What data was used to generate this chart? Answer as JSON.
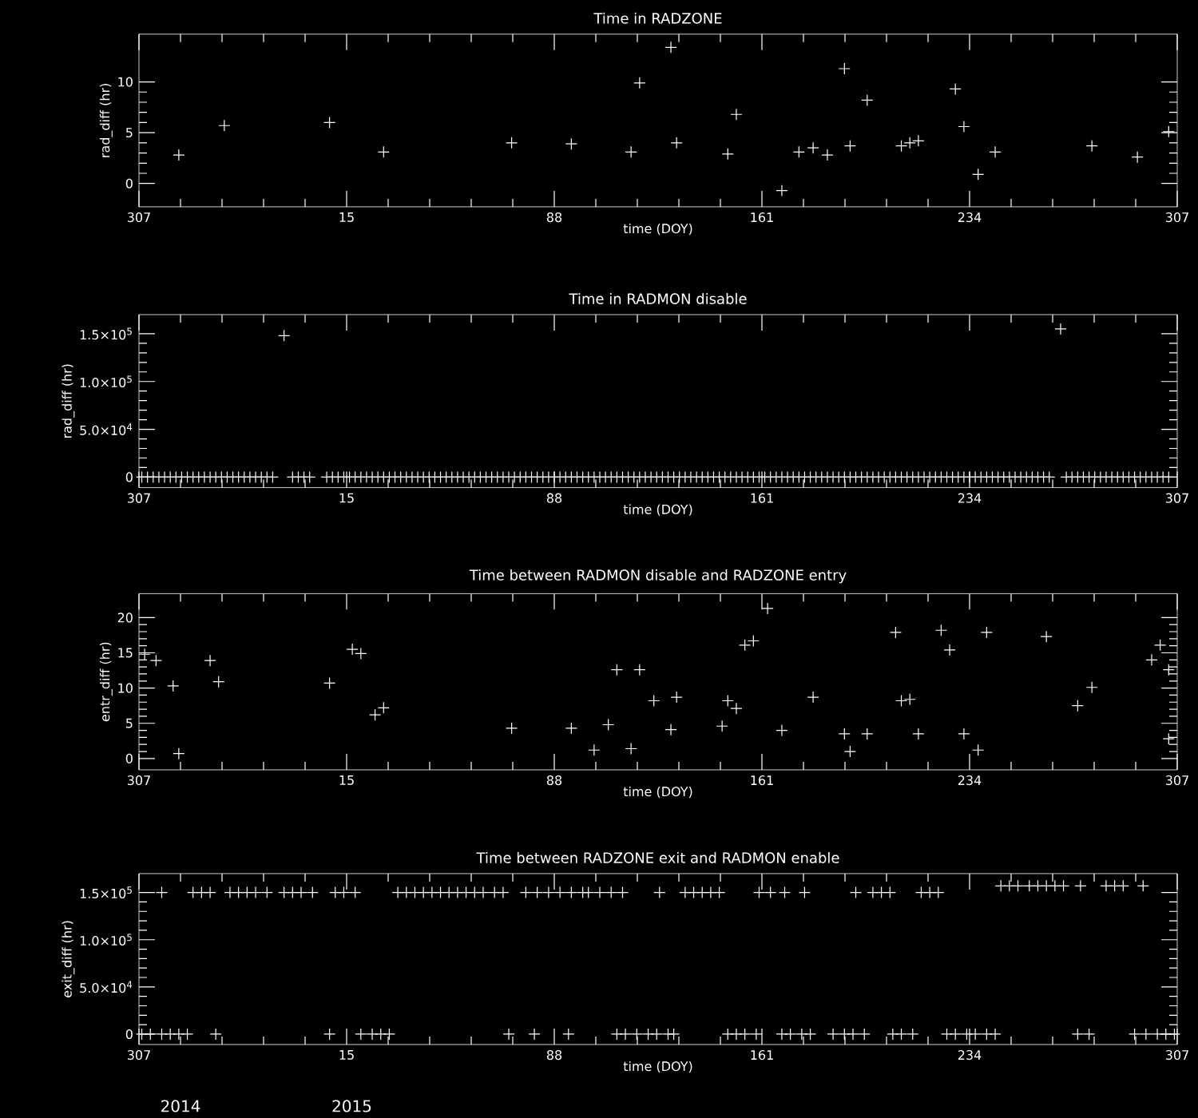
{
  "chart_data": [
    {
      "type": "scatter",
      "title": "Time in RADZONE",
      "xlabel": "time (DOY)",
      "ylabel": "rad_diff (hr)",
      "xlim": [
        "2014-11-03",
        "2015-11-03"
      ],
      "xticks": [
        {
          "value": "2014-11-03",
          "label": "307"
        },
        {
          "value": "2015-01-15",
          "label": "15"
        },
        {
          "value": "2015-03-29",
          "label": "88"
        },
        {
          "value": "2015-06-10",
          "label": "161"
        },
        {
          "value": "2015-08-22",
          "label": "234"
        },
        {
          "value": "2015-11-03",
          "label": "307"
        }
      ],
      "ylim": [
        -2.3,
        14.7
      ],
      "yticks": [
        0,
        5,
        10
      ],
      "marker": "cross",
      "series": [
        {
          "color": "#ffffff",
          "x": [
            "2014-11-17",
            "2014-12-03",
            "2015-01-09",
            "2015-01-28",
            "2015-03-14",
            "2015-04-04",
            "2015-04-25",
            "2015-04-28",
            "2015-05-09",
            "2015-05-11",
            "2015-05-29",
            "2015-06-01",
            "2015-06-17",
            "2015-06-23",
            "2015-06-28",
            "2015-07-03",
            "2015-07-09",
            "2015-07-11",
            "2015-07-17",
            "2015-07-29",
            "2015-08-01",
            "2015-08-04",
            "2015-08-17",
            "2015-08-20",
            "2015-08-25",
            "2015-08-31",
            "2015-10-04",
            "2015-10-20",
            "2015-10-31"
          ],
          "values": [
            2.8,
            5.7,
            6.0,
            3.1,
            4.0,
            3.9,
            3.1,
            9.9,
            13.4,
            4.0,
            2.9,
            6.8,
            -0.7,
            3.1,
            3.5,
            2.8,
            11.3,
            3.7,
            8.2,
            3.7,
            4.0,
            4.2,
            9.3,
            5.6,
            0.9,
            3.1,
            3.7,
            2.6,
            5.1
          ]
        }
      ]
    },
    {
      "type": "scatter",
      "title": "Time in RADMON disable",
      "xlabel": "time (DOY)",
      "ylabel": "rad_diff (hr)",
      "xlim": [
        "2014-11-03",
        "2015-11-03"
      ],
      "xticks": [
        {
          "value": "2014-11-03",
          "label": "307"
        },
        {
          "value": "2015-01-15",
          "label": "15"
        },
        {
          "value": "2015-03-29",
          "label": "88"
        },
        {
          "value": "2015-06-10",
          "label": "161"
        },
        {
          "value": "2015-08-22",
          "label": "234"
        },
        {
          "value": "2015-11-03",
          "label": "307"
        }
      ],
      "ylim": [
        -11000,
        170000
      ],
      "yticks": [
        0,
        {
          "value": 50000,
          "label": "5.0×10$^{4}$"
        },
        {
          "value": 100000,
          "label": "1.0×10$^{5}$"
        },
        {
          "value": 150000,
          "label": "1.5×10$^{5}$"
        }
      ],
      "marker": "cross",
      "series": [
        {
          "color": "#ffffff",
          "x": [
            "2014-12-24",
            "2015-09-23"
          ],
          "values": [
            148000,
            155000
          ]
        },
        {
          "color": "#ffffff",
          "x": [
            "2014-11-04",
            "2014-11-06",
            "2014-11-08",
            "2014-11-10",
            "2014-11-12",
            "2014-11-14",
            "2014-11-16",
            "2014-11-18",
            "2014-11-20",
            "2014-11-22",
            "2014-11-24",
            "2014-11-26",
            "2014-11-28",
            "2014-11-30",
            "2014-12-02",
            "2014-12-04",
            "2014-12-06",
            "2014-12-08",
            "2014-12-10",
            "2014-12-12",
            "2014-12-14",
            "2014-12-16",
            "2014-12-18",
            "2014-12-20",
            "2014-12-27",
            "2014-12-29",
            "2014-12-31",
            "2015-01-02",
            "2015-01-08",
            "2015-01-10",
            "2015-01-12",
            "2015-01-14",
            "2015-01-16",
            "2015-01-18",
            "2015-01-20",
            "2015-01-22",
            "2015-01-24",
            "2015-01-26",
            "2015-01-28",
            "2015-01-30",
            "2015-02-01",
            "2015-02-03",
            "2015-02-05",
            "2015-02-07",
            "2015-02-09",
            "2015-02-11",
            "2015-02-13",
            "2015-02-15",
            "2015-02-17",
            "2015-02-19",
            "2015-02-21",
            "2015-02-23",
            "2015-02-25",
            "2015-02-27",
            "2015-03-01",
            "2015-03-03",
            "2015-03-05",
            "2015-03-07",
            "2015-03-09",
            "2015-03-11",
            "2015-03-13",
            "2015-03-15",
            "2015-03-17",
            "2015-03-19",
            "2015-03-21",
            "2015-03-23",
            "2015-03-25",
            "2015-03-27",
            "2015-03-29",
            "2015-03-31",
            "2015-04-02",
            "2015-04-04",
            "2015-04-06",
            "2015-04-08",
            "2015-04-10",
            "2015-04-12",
            "2015-04-14",
            "2015-04-16",
            "2015-04-18",
            "2015-04-20",
            "2015-04-22",
            "2015-04-24",
            "2015-04-26",
            "2015-04-28",
            "2015-04-30",
            "2015-05-02",
            "2015-05-04",
            "2015-05-06",
            "2015-05-08",
            "2015-05-10",
            "2015-05-12",
            "2015-05-14",
            "2015-05-16",
            "2015-05-18",
            "2015-05-20",
            "2015-05-22",
            "2015-05-24",
            "2015-05-26",
            "2015-05-28",
            "2015-05-30",
            "2015-06-01",
            "2015-06-03",
            "2015-06-05",
            "2015-06-07",
            "2015-06-09",
            "2015-06-11",
            "2015-06-13",
            "2015-06-15",
            "2015-06-17",
            "2015-06-19",
            "2015-06-21",
            "2015-06-23",
            "2015-06-25",
            "2015-06-27",
            "2015-06-29",
            "2015-07-01",
            "2015-07-03",
            "2015-07-05",
            "2015-07-07",
            "2015-07-09",
            "2015-07-11",
            "2015-07-13",
            "2015-07-15",
            "2015-07-17",
            "2015-07-19",
            "2015-07-21",
            "2015-07-23",
            "2015-07-25",
            "2015-07-27",
            "2015-07-29",
            "2015-07-31",
            "2015-08-02",
            "2015-08-04",
            "2015-08-06",
            "2015-08-08",
            "2015-08-10",
            "2015-08-12",
            "2015-08-14",
            "2015-08-16",
            "2015-08-18",
            "2015-08-20",
            "2015-08-22",
            "2015-08-24",
            "2015-08-26",
            "2015-08-28",
            "2015-08-30",
            "2015-09-01",
            "2015-09-03",
            "2015-09-05",
            "2015-09-07",
            "2015-09-09",
            "2015-09-11",
            "2015-09-13",
            "2015-09-15",
            "2015-09-17",
            "2015-09-19",
            "2015-09-25",
            "2015-09-27",
            "2015-09-29",
            "2015-10-01",
            "2015-10-03",
            "2015-10-05",
            "2015-10-07",
            "2015-10-09",
            "2015-10-11",
            "2015-10-13",
            "2015-10-15",
            "2015-10-17",
            "2015-10-19",
            "2015-10-21",
            "2015-10-23",
            "2015-10-25",
            "2015-10-27",
            "2015-10-29",
            "2015-10-31"
          ],
          "values": [
            0,
            0,
            0,
            0,
            0,
            0,
            0,
            0,
            0,
            0,
            0,
            0,
            0,
            0,
            0,
            0,
            0,
            0,
            0,
            0,
            0,
            0,
            0,
            0,
            0,
            0,
            0,
            0,
            0,
            0,
            0,
            0,
            0,
            0,
            0,
            0,
            0,
            0,
            0,
            0,
            0,
            0,
            0,
            0,
            0,
            0,
            0,
            0,
            0,
            0,
            0,
            0,
            0,
            0,
            0,
            0,
            0,
            0,
            0,
            0,
            0,
            0,
            0,
            0,
            0,
            0,
            0,
            0,
            0,
            0,
            0,
            0,
            0,
            0,
            0,
            0,
            0,
            0,
            0,
            0,
            0,
            0,
            0,
            0,
            0,
            0,
            0,
            0,
            0,
            0,
            0,
            0,
            0,
            0,
            0,
            0,
            0,
            0,
            0,
            0,
            0,
            0,
            0,
            0,
            0,
            0,
            0,
            0,
            0,
            0,
            0,
            0,
            0,
            0,
            0,
            0,
            0,
            0,
            0,
            0,
            0,
            0,
            0,
            0,
            0,
            0,
            0,
            0,
            0,
            0,
            0,
            0,
            0,
            0,
            0,
            0,
            0,
            0,
            0,
            0,
            0,
            0,
            0,
            0,
            0,
            0,
            0,
            0,
            0,
            0,
            0,
            0,
            0,
            0,
            0,
            0,
            0,
            0,
            0,
            0,
            0,
            0,
            0,
            0,
            0,
            0,
            0,
            0,
            0,
            0,
            0,
            0,
            0,
            0,
            0
          ]
        }
      ]
    },
    {
      "type": "scatter",
      "title": "Time between RADMON disable and RADZONE entry",
      "xlabel": "time (DOY)",
      "ylabel": "entr_diff (hr)",
      "xlim": [
        "2014-11-03",
        "2015-11-03"
      ],
      "xticks": [
        {
          "value": "2014-11-03",
          "label": "307"
        },
        {
          "value": "2015-01-15",
          "label": "15"
        },
        {
          "value": "2015-03-29",
          "label": "88"
        },
        {
          "value": "2015-06-10",
          "label": "161"
        },
        {
          "value": "2015-08-22",
          "label": "234"
        },
        {
          "value": "2015-11-03",
          "label": "307"
        }
      ],
      "ylim": [
        -1.6,
        23.4
      ],
      "yticks": [
        0,
        5,
        10,
        15,
        20
      ],
      "marker": "cross",
      "series": [
        {
          "color": "#ffffff",
          "x": [
            "2014-11-05",
            "2014-11-09",
            "2014-11-15",
            "2014-11-17",
            "2014-11-28",
            "2014-12-01",
            "2015-01-09",
            "2015-01-17",
            "2015-01-20",
            "2015-01-25",
            "2015-01-28",
            "2015-03-14",
            "2015-04-04",
            "2015-04-12",
            "2015-04-17",
            "2015-04-20",
            "2015-04-25",
            "2015-04-28",
            "2015-05-03",
            "2015-05-09",
            "2015-05-11",
            "2015-05-27",
            "2015-05-29",
            "2015-06-01",
            "2015-06-04",
            "2015-06-07",
            "2015-06-12",
            "2015-06-17",
            "2015-06-28",
            "2015-07-09",
            "2015-07-11",
            "2015-07-17",
            "2015-07-27",
            "2015-07-29",
            "2015-08-01",
            "2015-08-04",
            "2015-08-12",
            "2015-08-15",
            "2015-08-20",
            "2015-08-25",
            "2015-08-28",
            "2015-09-18",
            "2015-09-29",
            "2015-10-04",
            "2015-10-25",
            "2015-10-28",
            "2015-10-31",
            "2015-10-31"
          ],
          "values": [
            14.8,
            13.9,
            10.3,
            0.7,
            13.9,
            10.9,
            10.7,
            15.5,
            14.9,
            6.2,
            7.2,
            4.3,
            4.3,
            1.2,
            4.8,
            12.6,
            1.4,
            12.6,
            8.2,
            4.1,
            8.7,
            4.6,
            8.2,
            7.1,
            16.1,
            16.7,
            21.3,
            4.0,
            8.7,
            3.5,
            1.0,
            3.5,
            17.9,
            8.2,
            8.4,
            3.5,
            18.2,
            15.4,
            3.5,
            1.2,
            17.9,
            17.3,
            7.5,
            10.1,
            14.0,
            16.1,
            12.6,
            2.8
          ]
        }
      ]
    },
    {
      "type": "scatter",
      "title": "Time between RADZONE exit and RADMON enable",
      "xlabel": "time (DOY)",
      "ylabel": "exit_diff (hr)",
      "xlim": [
        "2014-11-03",
        "2015-11-03"
      ],
      "xticks": [
        {
          "value": "2014-11-03",
          "label": "307"
        },
        {
          "value": "2015-01-15",
          "label": "15"
        },
        {
          "value": "2015-03-29",
          "label": "88"
        },
        {
          "value": "2015-06-10",
          "label": "161"
        },
        {
          "value": "2015-08-22",
          "label": "234"
        },
        {
          "value": "2015-11-03",
          "label": "307"
        }
      ],
      "ylim": [
        -11000,
        170000
      ],
      "yticks": [
        0,
        {
          "value": 50000,
          "label": "5.0×10$^{4}$"
        },
        {
          "value": 100000,
          "label": "1.0×10$^{5}$"
        },
        {
          "value": 150000,
          "label": "1.5×10$^{5}$"
        }
      ],
      "marker": "cross",
      "annotations": [
        "2014",
        "2015"
      ],
      "series": [
        {
          "color": "#ffffff",
          "x": [
            "2014-11-11",
            "2014-11-22",
            "2014-11-25",
            "2014-11-28",
            "2014-12-05",
            "2014-12-08",
            "2014-12-11",
            "2014-12-14",
            "2014-12-18",
            "2014-12-24",
            "2014-12-27",
            "2014-12-30",
            "2015-01-03",
            "2015-01-11",
            "2015-01-14",
            "2015-01-18",
            "2015-02-02",
            "2015-02-05",
            "2015-02-08",
            "2015-02-11",
            "2015-02-14",
            "2015-02-17",
            "2015-02-20",
            "2015-02-23",
            "2015-02-26",
            "2015-03-01",
            "2015-03-04",
            "2015-03-08",
            "2015-03-11",
            "2015-03-19",
            "2015-03-23",
            "2015-03-27",
            "2015-03-31",
            "2015-04-04",
            "2015-04-08",
            "2015-04-10",
            "2015-04-14",
            "2015-04-18",
            "2015-04-22",
            "2015-05-05",
            "2015-05-14",
            "2015-05-17",
            "2015-05-20",
            "2015-05-23",
            "2015-05-26",
            "2015-06-09",
            "2015-06-13",
            "2015-06-18",
            "2015-06-25",
            "2015-07-13",
            "2015-07-19",
            "2015-07-22",
            "2015-07-25",
            "2015-08-05",
            "2015-08-08",
            "2015-08-11"
          ],
          "values": [
            150000,
            150000,
            150000,
            150000,
            150000,
            150000,
            150000,
            150000,
            150000,
            150000,
            150000,
            150000,
            150000,
            150000,
            150000,
            150000,
            150000,
            150000,
            150000,
            150000,
            150000,
            150000,
            150000,
            150000,
            150000,
            150000,
            150000,
            150000,
            150000,
            150000,
            150000,
            150000,
            150000,
            150000,
            150000,
            150000,
            150000,
            150000,
            150000,
            150000,
            150000,
            150000,
            150000,
            150000,
            150000,
            150000,
            150000,
            150000,
            150000,
            150000,
            150000,
            150000,
            150000,
            150000,
            150000,
            150000
          ]
        },
        {
          "color": "#ffffff",
          "x": [
            "2015-09-02",
            "2015-09-05",
            "2015-09-08",
            "2015-09-12",
            "2015-09-15",
            "2015-09-18",
            "2015-09-21",
            "2015-09-24",
            "2015-09-30",
            "2015-10-09",
            "2015-10-12",
            "2015-10-15",
            "2015-10-22"
          ],
          "values": [
            157000,
            157000,
            157000,
            157000,
            157000,
            157000,
            157000,
            157000,
            157000,
            157000,
            157000,
            157000,
            157000
          ]
        },
        {
          "color": "#ffffff",
          "x": [
            "2014-11-04",
            "2014-11-07",
            "2014-11-11",
            "2014-11-14",
            "2014-11-17",
            "2014-11-20",
            "2014-11-30",
            "2015-01-09",
            "2015-01-20",
            "2015-01-24",
            "2015-01-27",
            "2015-01-30",
            "2015-03-13",
            "2015-03-22",
            "2015-04-03",
            "2015-04-20",
            "2015-04-23",
            "2015-04-27",
            "2015-05-01",
            "2015-05-04",
            "2015-05-08",
            "2015-05-10",
            "2015-05-29",
            "2015-06-01",
            "2015-06-04",
            "2015-06-08",
            "2015-06-17",
            "2015-06-20",
            "2015-06-24",
            "2015-06-27",
            "2015-07-05",
            "2015-07-09",
            "2015-07-12",
            "2015-07-16",
            "2015-07-26",
            "2015-07-29",
            "2015-08-02",
            "2015-08-14",
            "2015-08-17",
            "2015-08-21",
            "2015-08-24",
            "2015-08-28",
            "2015-08-31",
            "2015-09-29",
            "2015-10-03",
            "2015-10-19",
            "2015-10-23",
            "2015-10-27",
            "2015-10-30",
            "2015-11-02"
          ],
          "values": [
            0,
            0,
            0,
            0,
            0,
            0,
            0,
            0,
            0,
            0,
            0,
            0,
            0,
            0,
            0,
            0,
            0,
            0,
            0,
            0,
            0,
            0,
            0,
            0,
            0,
            0,
            0,
            0,
            0,
            0,
            0,
            0,
            0,
            0,
            0,
            0,
            0,
            0,
            0,
            0,
            0,
            0,
            0,
            0,
            0,
            0,
            0,
            0,
            0,
            0
          ]
        }
      ]
    }
  ]
}
